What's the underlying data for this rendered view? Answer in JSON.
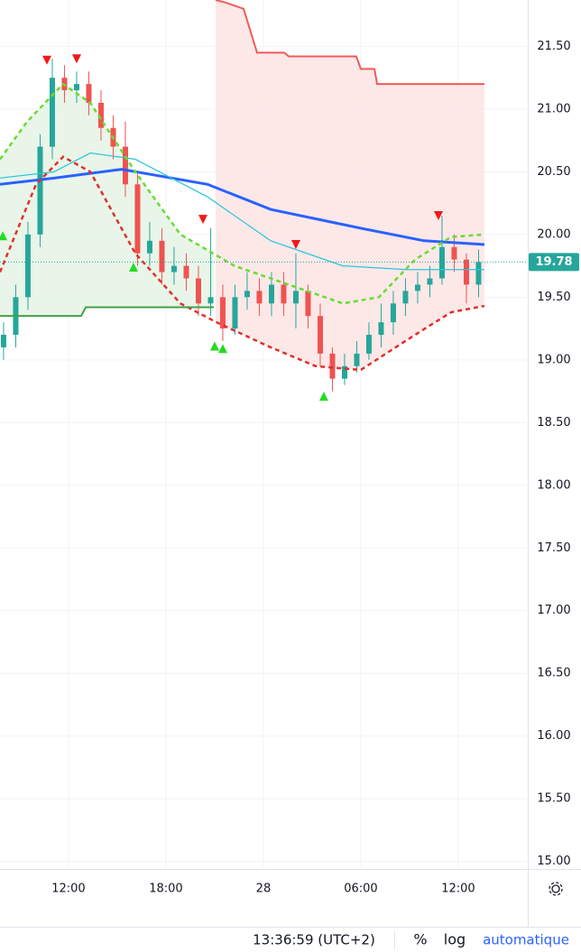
{
  "chart_data": {
    "type": "candlestick",
    "x": [
      8,
      8.75,
      9.5,
      10.25,
      11,
      11.75,
      12.5,
      13.25,
      14,
      14.75,
      15.5,
      16.25,
      17,
      17.75,
      18.5,
      19.25,
      20,
      20.75,
      21.5,
      22.25,
      23,
      23.75,
      24.5,
      25.25,
      26,
      26.75,
      27.5,
      28.25,
      29,
      29.75,
      30.5,
      31.25,
      32,
      32.75,
      33.5,
      34.25,
      35,
      35.75,
      36.5,
      37.25
    ],
    "open": [
      19.1,
      19.2,
      19.5,
      20.0,
      20.7,
      21.25,
      21.15,
      21.2,
      21.05,
      20.85,
      20.7,
      20.4,
      19.85,
      19.95,
      19.7,
      19.75,
      19.65,
      19.45,
      19.5,
      19.25,
      19.5,
      19.55,
      19.45,
      19.6,
      19.45,
      19.55,
      19.35,
      19.05,
      18.85,
      18.95,
      19.05,
      19.2,
      19.3,
      19.45,
      19.55,
      19.6,
      19.65,
      19.9,
      19.8,
      19.6
    ],
    "high": [
      19.3,
      19.6,
      20.1,
      20.8,
      21.4,
      21.35,
      21.3,
      21.3,
      21.15,
      20.95,
      20.9,
      20.5,
      20.1,
      20.05,
      19.9,
      19.85,
      19.75,
      20.05,
      19.6,
      19.6,
      19.7,
      19.65,
      19.7,
      19.7,
      19.85,
      19.6,
      19.45,
      19.1,
      19.05,
      19.15,
      19.3,
      19.45,
      19.55,
      19.65,
      19.7,
      19.75,
      20.15,
      20.0,
      19.85,
      19.88
    ],
    "low": [
      19.0,
      19.1,
      19.4,
      19.9,
      20.6,
      21.05,
      21.05,
      20.95,
      20.75,
      20.6,
      20.3,
      19.75,
      19.75,
      19.6,
      19.6,
      19.55,
      19.35,
      19.35,
      19.15,
      19.2,
      19.4,
      19.35,
      19.35,
      19.35,
      19.25,
      19.25,
      18.95,
      18.75,
      18.8,
      18.9,
      19.0,
      19.1,
      19.2,
      19.35,
      19.45,
      19.5,
      19.6,
      19.7,
      19.45,
      19.5
    ],
    "close": [
      19.2,
      19.5,
      20.0,
      20.7,
      21.25,
      21.15,
      21.2,
      21.05,
      20.85,
      20.7,
      20.4,
      19.85,
      19.95,
      19.7,
      19.75,
      19.65,
      19.45,
      19.5,
      19.25,
      19.5,
      19.55,
      19.45,
      19.6,
      19.45,
      19.55,
      19.35,
      19.05,
      18.85,
      18.95,
      19.05,
      19.2,
      19.3,
      19.45,
      19.55,
      19.6,
      19.65,
      19.9,
      19.8,
      19.6,
      19.78
    ],
    "up_color": "#26a69a",
    "down_color": "#ef5350",
    "lines": [
      {
        "color": "#2962ff",
        "width": 3,
        "dashed": false,
        "x": [
          7.78,
          11.11,
          15.28,
          20.56,
          24.45,
          30.0,
          33.89,
          37.61
        ],
        "values": [
          20.4,
          20.45,
          20.52,
          20.4,
          20.2,
          20.05,
          19.95,
          19.92
        ]
      },
      {
        "color": "#26c6da",
        "width": 1.2,
        "dashed": false,
        "x": [
          7.78,
          11.11,
          13.34,
          16.11,
          20.56,
          24.45,
          28.89,
          32.78,
          37.61
        ],
        "values": [
          20.45,
          20.5,
          20.65,
          20.6,
          20.3,
          19.95,
          19.75,
          19.72,
          19.72
        ]
      },
      {
        "color": "#66dd33",
        "width": 2.5,
        "dashed": true,
        "x": [
          7.78,
          9.45,
          11.67,
          13.34,
          16.11,
          18.89,
          22.22,
          25.56,
          28.89,
          31.11,
          33.34,
          35.56,
          37.61
        ],
        "values": [
          20.6,
          20.9,
          21.2,
          21.05,
          20.5,
          20.0,
          19.75,
          19.6,
          19.45,
          19.5,
          19.8,
          19.98,
          20.0
        ]
      },
      {
        "color": "#e0302a",
        "width": 2.5,
        "dashed": true,
        "x": [
          7.78,
          10.0,
          11.67,
          13.34,
          16.11,
          18.89,
          21.11,
          24.45,
          27.22,
          30.0,
          33.34,
          35.56,
          37.61
        ],
        "values": [
          19.7,
          20.4,
          20.62,
          20.5,
          19.85,
          19.45,
          19.3,
          19.1,
          18.95,
          18.92,
          19.2,
          19.38,
          19.43
        ]
      },
      {
        "color": "#43a047",
        "width": 2,
        "dashed": false,
        "fill": "#e3f2e4",
        "fill_to": 2,
        "x": [
          7.78,
          12.78,
          13.06,
          20.95
        ],
        "values": [
          19.35,
          19.35,
          19.42,
          19.42
        ]
      },
      {
        "color": "#f05a5a",
        "width": 2,
        "dashed": false,
        "fill": "#fde2e2",
        "fill_to": 3,
        "x": [
          21.06,
          21.67,
          22.78,
          23.61,
          25.28,
          25.56,
          29.72,
          30.0,
          30.84,
          31.0,
          37.61
        ],
        "values": [
          21.87,
          21.85,
          21.8,
          21.45,
          21.45,
          21.42,
          21.42,
          21.32,
          21.32,
          21.2,
          21.2
        ]
      }
    ],
    "signals": [
      {
        "marker": "down",
        "color": "#f21818",
        "x": [
          10.67,
          12.5,
          20.28,
          26.0,
          34.78
        ],
        "values": [
          21.39,
          21.4,
          20.12,
          19.92,
          20.15
        ]
      },
      {
        "marker": "up",
        "color": "#22dd22",
        "x": [
          7.95,
          16.0,
          21.0,
          21.5,
          27.72
        ],
        "values": [
          19.99,
          19.74,
          19.11,
          19.09,
          18.71
        ]
      }
    ],
    "last_price": 19.78,
    "xlim": [
      7.78,
      40.28
    ],
    "xticks": [
      {
        "value": 12,
        "label": "12:00"
      },
      {
        "value": 18,
        "label": "18:00"
      },
      {
        "value": 24,
        "label": "28"
      },
      {
        "value": 30,
        "label": "06:00"
      },
      {
        "value": 36,
        "label": "12:00"
      }
    ],
    "ylim": [
      14.94,
      21.87
    ],
    "yticks": [
      {
        "value": 15,
        "label": "15.00"
      },
      {
        "value": 15.5,
        "label": "15.50"
      },
      {
        "value": 16,
        "label": "16.00"
      },
      {
        "value": 16.5,
        "label": "16.50"
      },
      {
        "value": 17,
        "label": "17.00"
      },
      {
        "value": 17.5,
        "label": "17.50"
      },
      {
        "value": 18,
        "label": "18.00"
      },
      {
        "value": 18.5,
        "label": "18.50"
      },
      {
        "value": 19,
        "label": "19.00"
      },
      {
        "value": 19.5,
        "label": "19.50"
      },
      {
        "value": 20,
        "label": "20.00"
      },
      {
        "value": 20.5,
        "label": "20.50"
      },
      {
        "value": 21,
        "label": "21.00"
      },
      {
        "value": 21.5,
        "label": "21.50"
      }
    ],
    "grid": true
  },
  "footer": {
    "time": "13:36:59 (UTC+2)",
    "percent": "%",
    "log": "log",
    "scale": "automatique"
  }
}
